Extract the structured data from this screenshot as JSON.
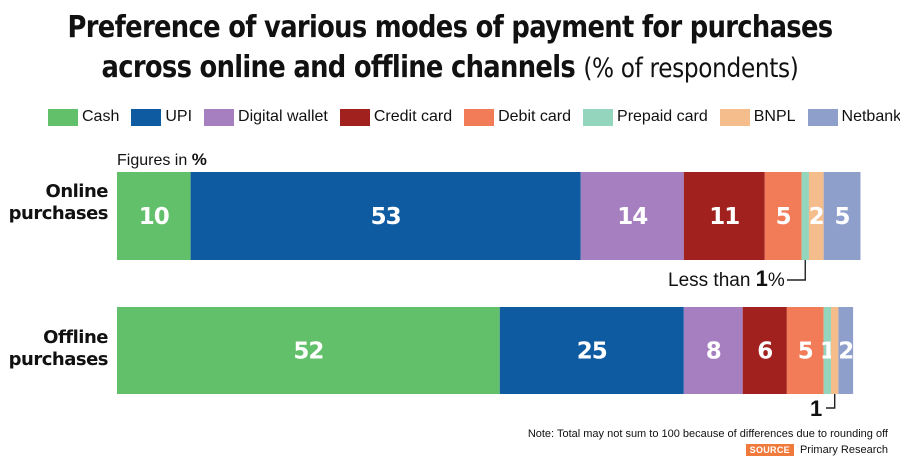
{
  "title_line1": "Preference of various modes of payment for purchases",
  "title_line2": "across online and offline channels",
  "title_suffix": "(% of respondents)",
  "figures_in_prefix": "Figures in ",
  "figures_in_unit": "%",
  "annotation_online_prefix": "Less than ",
  "annotation_online_value": "1",
  "annotation_online_unit": "%",
  "annotation_offline_value": "1",
  "note": "Note: Total may not sum to 100 because of differences due to rounding off",
  "source_label": "SOURCE",
  "source_text": "Primary Research",
  "colors": {
    "Cash": "#62bf6a",
    "UPI": "#0f5ba1",
    "Digital wallet": "#a57fbf",
    "Credit card": "#a0211d",
    "Debit card": "#f27b58",
    "Prepaid card": "#93d6bd",
    "BNPL": "#f6bd8c",
    "Netbanking": "#8f9fcc"
  },
  "chart_data": {
    "type": "bar",
    "orientation": "horizontal",
    "stacked": true,
    "categories": [
      "Online purchases",
      "Offline purchases"
    ],
    "category_lines": [
      [
        "Online",
        "purchases"
      ],
      [
        "Offline",
        "purchases"
      ]
    ],
    "legend": [
      "Cash",
      "UPI",
      "Digital wallet",
      "Credit card",
      "Debit card",
      "Prepaid card",
      "BNPL",
      "Netbanking"
    ],
    "legend_position": "top",
    "series": [
      {
        "name": "Cash",
        "values": [
          10,
          52
        ],
        "labels": [
          "10",
          "52"
        ]
      },
      {
        "name": "UPI",
        "values": [
          53,
          25
        ],
        "labels": [
          "53",
          "25"
        ]
      },
      {
        "name": "Digital wallet",
        "values": [
          14,
          8
        ],
        "labels": [
          "14",
          "8"
        ]
      },
      {
        "name": "Credit card",
        "values": [
          11,
          6
        ],
        "labels": [
          "11",
          "6"
        ]
      },
      {
        "name": "Debit card",
        "values": [
          5,
          5
        ],
        "labels": [
          "5",
          "5"
        ]
      },
      {
        "name": "Prepaid card",
        "values": [
          1,
          1
        ],
        "labels": [
          "",
          "1"
        ]
      },
      {
        "name": "BNPL",
        "values": [
          2,
          1
        ],
        "labels": [
          "2",
          ""
        ]
      },
      {
        "name": "Netbanking",
        "values": [
          5,
          2
        ],
        "labels": [
          "5",
          "2"
        ]
      }
    ],
    "xlim": [
      0,
      100
    ],
    "grid": false
  }
}
